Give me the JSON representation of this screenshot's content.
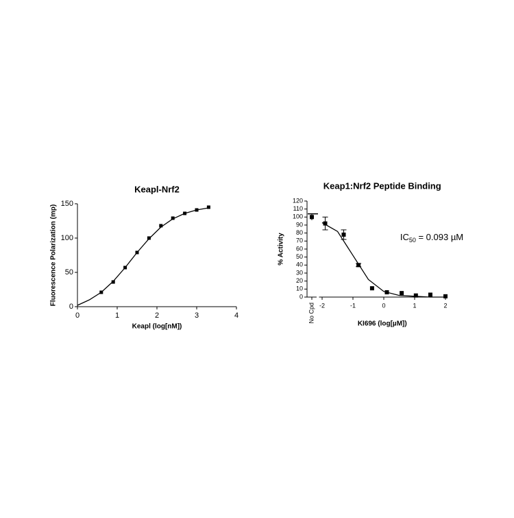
{
  "chart_data": [
    {
      "type": "scatter",
      "title": "Keapl-Nrf2",
      "xlabel": "Keapl (log[nM])",
      "ylabel": "Fluorescence Polarization (mp)",
      "x": [
        0.6,
        0.9,
        1.2,
        1.5,
        1.8,
        2.1,
        2.4,
        2.7,
        3.0,
        3.3
      ],
      "values": [
        21,
        36,
        57,
        79,
        100,
        118,
        129,
        136,
        141,
        145
      ],
      "fit": {
        "x": [
          0,
          0.3,
          0.6,
          0.9,
          1.2,
          1.5,
          1.8,
          2.1,
          2.4,
          2.7,
          3.0,
          3.3
        ],
        "values": [
          2,
          10,
          21,
          37,
          57,
          79,
          99,
          116,
          128,
          136,
          141,
          144
        ]
      },
      "xlim": [
        0,
        4
      ],
      "xticks": [
        0,
        1,
        2,
        3,
        4
      ],
      "ylim": [
        0,
        150
      ],
      "yticks": [
        0,
        50,
        100,
        150
      ],
      "color": "#000000"
    },
    {
      "type": "scatter",
      "title": "Keap1:Nrf2 Peptide Binding",
      "xlabel": "KI696 (log[µM])",
      "ylabel": "% Activity",
      "annotation": {
        "text": "IC",
        "subscript": "50",
        "suffix": " = 0.093 µM"
      },
      "categories": [
        "No Cpd"
      ],
      "category_values": [
        100
      ],
      "category_errors": [
        4
      ],
      "x": [
        -1.9,
        -1.3,
        -0.82,
        -0.38,
        0.1,
        0.58,
        1.04,
        1.51,
        2.0
      ],
      "values": [
        92,
        78,
        40,
        11,
        6,
        5,
        2,
        3,
        1
      ],
      "errors": [
        8,
        6,
        2,
        0,
        0,
        0,
        0,
        0,
        0
      ],
      "fit": {
        "x": [
          -2,
          -1.5,
          -1,
          -0.5,
          0,
          0.5,
          1,
          1.5,
          2
        ],
        "values": [
          93,
          82,
          52,
          22,
          7,
          2,
          1,
          0,
          0
        ]
      },
      "xlim": [
        -2.1,
        2
      ],
      "xticks": [
        -2,
        -1,
        0,
        1,
        2
      ],
      "ylim": [
        0,
        120
      ],
      "yticks": [
        0,
        10,
        20,
        30,
        40,
        50,
        60,
        70,
        80,
        90,
        100,
        110,
        120
      ],
      "color": "#000000"
    }
  ]
}
